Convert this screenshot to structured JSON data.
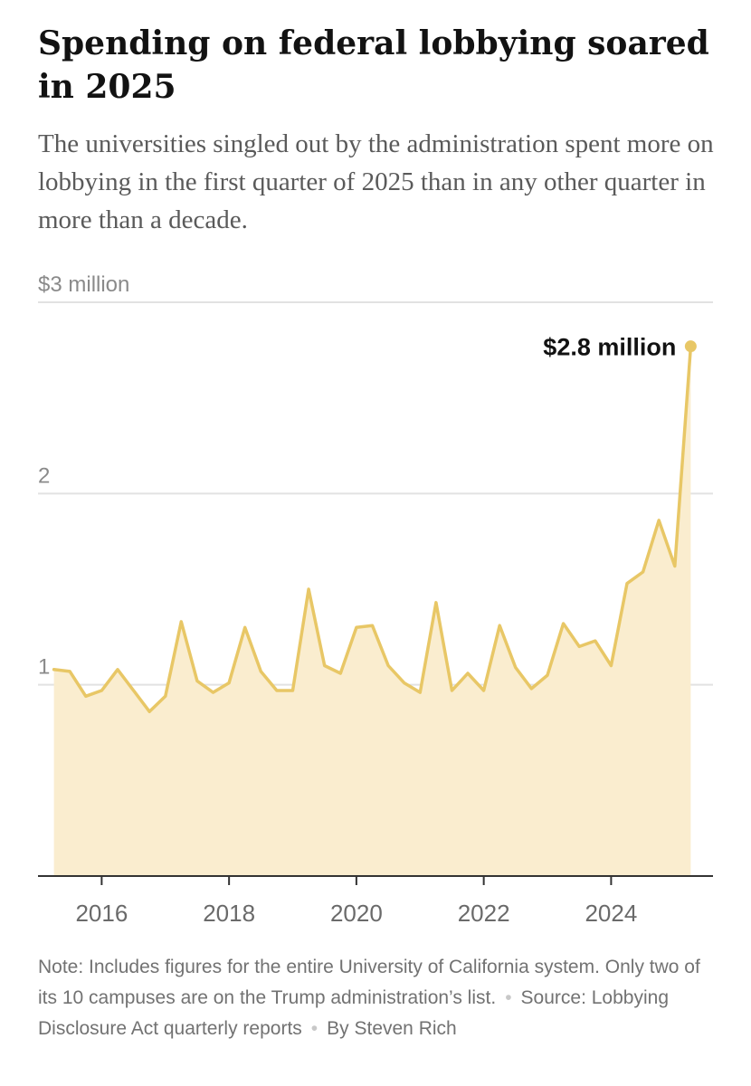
{
  "header": {
    "title": "Spending on federal lobbying soared in 2025",
    "subtitle": "The universities singled out by the administration spent more on lobbying in the first quarter of 2025 than in any other quarter in more than a decade."
  },
  "chart_data": {
    "type": "area",
    "title": "Spending on federal lobbying soared in 2025",
    "xlabel": "",
    "ylabel": "",
    "y_unit": "million dollars",
    "ylim": [
      0,
      3
    ],
    "xlim": [
      2015.0,
      2025.6
    ],
    "y_ticks": [
      {
        "value": 1,
        "label": "1"
      },
      {
        "value": 2,
        "label": "2"
      },
      {
        "value": 3,
        "label": "$3 million"
      }
    ],
    "x_ticks": [
      {
        "value": 2016,
        "label": "2016"
      },
      {
        "value": 2018,
        "label": "2018"
      },
      {
        "value": 2020,
        "label": "2020"
      },
      {
        "value": 2022,
        "label": "2022"
      },
      {
        "value": 2024,
        "label": "2024"
      }
    ],
    "grid": true,
    "annotation": {
      "label": "$2.8 million",
      "x": 2025.25,
      "y": 2.77
    },
    "colors": {
      "line": "#e8c766",
      "fill": "#faedcf",
      "dot": "#e8c766",
      "grid": "#e2e2e2",
      "axis": "#333333"
    },
    "series": [
      {
        "points": [
          [
            2015.25,
            1.08
          ],
          [
            2015.5,
            1.07
          ],
          [
            2015.75,
            0.94
          ],
          [
            2016.0,
            0.97
          ],
          [
            2016.25,
            1.08
          ],
          [
            2016.5,
            0.97
          ],
          [
            2016.75,
            0.86
          ],
          [
            2017.0,
            0.94
          ],
          [
            2017.25,
            1.33
          ],
          [
            2017.5,
            1.02
          ],
          [
            2017.75,
            0.96
          ],
          [
            2018.0,
            1.01
          ],
          [
            2018.25,
            1.3
          ],
          [
            2018.5,
            1.07
          ],
          [
            2018.75,
            0.97
          ],
          [
            2019.0,
            0.97
          ],
          [
            2019.25,
            1.5
          ],
          [
            2019.5,
            1.1
          ],
          [
            2019.75,
            1.06
          ],
          [
            2020.0,
            1.3
          ],
          [
            2020.25,
            1.31
          ],
          [
            2020.5,
            1.1
          ],
          [
            2020.75,
            1.01
          ],
          [
            2021.0,
            0.96
          ],
          [
            2021.25,
            1.43
          ],
          [
            2021.5,
            0.97
          ],
          [
            2021.75,
            1.06
          ],
          [
            2022.0,
            0.97
          ],
          [
            2022.25,
            1.31
          ],
          [
            2022.5,
            1.09
          ],
          [
            2022.75,
            0.98
          ],
          [
            2023.0,
            1.05
          ],
          [
            2023.25,
            1.32
          ],
          [
            2023.5,
            1.2
          ],
          [
            2023.75,
            1.23
          ],
          [
            2024.0,
            1.1
          ],
          [
            2024.25,
            1.53
          ],
          [
            2024.5,
            1.59
          ],
          [
            2024.75,
            1.86
          ],
          [
            2025.0,
            1.62
          ],
          [
            2025.25,
            2.77
          ]
        ]
      }
    ]
  },
  "footer": {
    "note": "Note: Includes figures for the entire University of California system. Only two of its 10 campuses are on the Trump administration’s list.",
    "source": "Source: Lobbying Disclosure Act quarterly reports",
    "byline": "By Steven Rich"
  }
}
